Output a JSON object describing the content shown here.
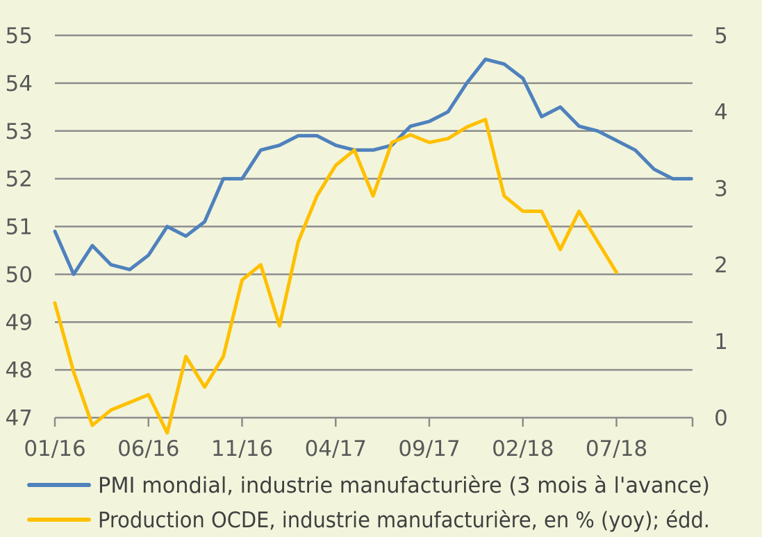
{
  "chart_data": {
    "type": "line",
    "x": [
      "01/16",
      "02/16",
      "03/16",
      "04/16",
      "05/16",
      "06/16",
      "07/16",
      "08/16",
      "09/16",
      "10/16",
      "11/16",
      "12/16",
      "01/17",
      "02/17",
      "03/17",
      "04/17",
      "05/17",
      "06/17",
      "07/17",
      "08/17",
      "09/17",
      "10/17",
      "11/17",
      "12/17",
      "01/18",
      "02/18",
      "03/18",
      "04/18",
      "05/18",
      "06/18",
      "07/18",
      "08/18",
      "09/18",
      "10/18",
      "11/18"
    ],
    "x_tick_labels": [
      "01/16",
      "06/16",
      "11/16",
      "04/17",
      "09/17",
      "02/18",
      "07/18"
    ],
    "y_left": {
      "ticks": [
        "47",
        "48",
        "49",
        "50",
        "51",
        "52",
        "53",
        "54",
        "55"
      ],
      "ylim": [
        47,
        55
      ]
    },
    "y_right": {
      "ticks": [
        "0",
        "1",
        "2",
        "3",
        "4",
        "5"
      ],
      "ylim": [
        0,
        5
      ]
    },
    "grid": true,
    "legend_position": "bottom",
    "series": [
      {
        "name": "PMI mondial, industrie manufacturière (3 mois à l'avance)",
        "axis": "left",
        "color": "#4F81BD",
        "values": [
          50.9,
          50.0,
          50.6,
          50.2,
          50.1,
          50.4,
          51.0,
          50.8,
          51.1,
          52.0,
          52.0,
          52.6,
          52.7,
          52.9,
          52.9,
          52.7,
          52.6,
          52.6,
          52.7,
          53.1,
          53.2,
          53.4,
          54.0,
          54.5,
          54.4,
          54.1,
          53.3,
          53.5,
          53.1,
          53.0,
          52.8,
          52.6,
          52.2,
          52.0,
          52.0
        ]
      },
      {
        "name": "Production OCDE, industrie manufacturière, en % (yoy); édd.",
        "axis": "right",
        "color": "#FFC000",
        "values": [
          1.5,
          0.6,
          -0.1,
          0.1,
          0.2,
          0.3,
          -0.2,
          0.8,
          0.4,
          0.8,
          1.8,
          2.0,
          1.2,
          2.3,
          2.9,
          3.3,
          3.5,
          2.9,
          3.6,
          3.7,
          3.6,
          3.65,
          3.8,
          3.9,
          2.9,
          2.7,
          2.7,
          2.2,
          2.7,
          2.3,
          1.9,
          null,
          null,
          null,
          null
        ]
      }
    ]
  }
}
